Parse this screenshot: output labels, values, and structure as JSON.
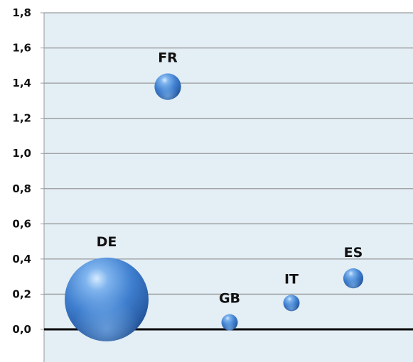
{
  "chart_data": {
    "type": "bubble",
    "title": "",
    "xlabel": "",
    "ylabel": "",
    "ylim": [
      0,
      1.8
    ],
    "yticks": [
      "0,0",
      "0,2",
      "0,4",
      "0,6",
      "0,8",
      "1,0",
      "1,2",
      "1,4",
      "1,6",
      "1,8"
    ],
    "grid": true,
    "legend": "none",
    "colors": {
      "plot_background": "#e3eef5",
      "gridline": "#9a9a9a",
      "zero_line": "#000000",
      "bubble": "#3f7fcf"
    },
    "points": [
      {
        "label": "DE",
        "x": 1,
        "y": 0.17,
        "size": 100
      },
      {
        "label": "FR",
        "x": 2,
        "y": 1.38,
        "size": 10
      },
      {
        "label": "GB",
        "x": 3,
        "y": 0.04,
        "size": 3.8
      },
      {
        "label": "IT",
        "x": 4,
        "y": 0.15,
        "size": 3.8
      },
      {
        "label": "ES",
        "x": 5,
        "y": 0.29,
        "size": 5.7
      }
    ]
  }
}
